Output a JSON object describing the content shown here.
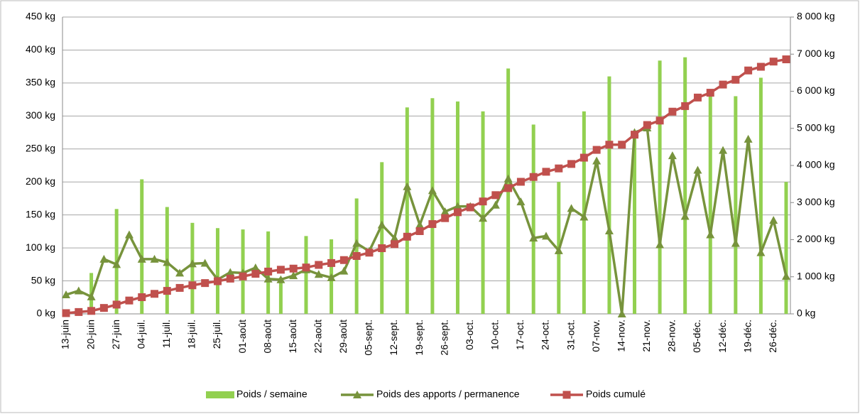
{
  "chart_data": {
    "type": "combo",
    "categories": [
      "13-juin",
      null,
      "20-juin",
      null,
      "27-juin",
      null,
      "04-juil.",
      null,
      "11-juil.",
      null,
      "18-juil.",
      null,
      "25-juil.",
      null,
      "01-août",
      null,
      "08-août",
      null,
      "15-août",
      null,
      "22-août",
      null,
      "29-août",
      null,
      "05-sept.",
      null,
      "12-sept.",
      null,
      "19-sept.",
      null,
      "26-sept.",
      null,
      "03-oct.",
      null,
      "10-oct.",
      null,
      "17-oct.",
      null,
      "24-oct.",
      null,
      "31-oct.",
      null,
      "07-nov.",
      null,
      "14-nov.",
      null,
      "21-nov.",
      null,
      "28-nov.",
      null,
      "05-déc.",
      null,
      "12-déc.",
      null,
      "19-déc.",
      null,
      "26-déc.",
      null
    ],
    "series": [
      {
        "name": "Poids / semaine",
        "kind": "bar",
        "color": "#92d050",
        "values": [
          null,
          null,
          62,
          null,
          159,
          null,
          204,
          null,
          162,
          null,
          138,
          null,
          130,
          null,
          128,
          null,
          125,
          55,
          null,
          118,
          null,
          113,
          null,
          175,
          null,
          230,
          null,
          313,
          null,
          327,
          null,
          322,
          null,
          307,
          null,
          372,
          null,
          287,
          null,
          200,
          null,
          307,
          null,
          360,
          null,
          275,
          null,
          384,
          null,
          389,
          null,
          330,
          null,
          330,
          null,
          358,
          null,
          200
        ]
      },
      {
        "name": "Poids des apports / permanence",
        "kind": "line",
        "marker": "triangle",
        "color": "#77933c",
        "values": [
          29,
          35,
          26,
          83,
          75,
          120,
          83,
          83,
          78,
          62,
          76,
          77,
          52,
          63,
          62,
          70,
          53,
          52,
          58,
          67,
          60,
          55,
          65,
          107,
          95,
          135,
          115,
          193,
          135,
          187,
          155,
          163,
          163,
          145,
          165,
          205,
          170,
          115,
          118,
          96,
          160,
          147,
          232,
          126,
          0,
          275,
          282,
          105,
          240,
          148,
          218,
          120,
          248,
          107,
          265,
          93,
          142,
          57
        ]
      },
      {
        "name": "Poids cumulé",
        "kind": "line",
        "marker": "square",
        "axis": "y2",
        "color": "#c0504d",
        "values": [
          20,
          50,
          80,
          160,
          250,
          360,
          450,
          540,
          620,
          700,
          770,
          830,
          880,
          950,
          1010,
          1080,
          1140,
          1190,
          1220,
          1250,
          1320,
          1370,
          1450,
          1560,
          1650,
          1770,
          1880,
          2080,
          2230,
          2420,
          2580,
          2740,
          2870,
          3030,
          3200,
          3390,
          3560,
          3690,
          3830,
          3920,
          4040,
          4210,
          4420,
          4560,
          4560,
          4830,
          5090,
          5210,
          5450,
          5600,
          5830,
          5960,
          6180,
          6310,
          6560,
          6660,
          6800,
          6860
        ]
      }
    ],
    "ylim": [
      0,
      450
    ],
    "yticks": [
      {
        "value": 0,
        "label": "0 kg"
      },
      {
        "value": 50,
        "label": "50 kg"
      },
      {
        "value": 100,
        "label": "100 kg"
      },
      {
        "value": 150,
        "label": "150 kg"
      },
      {
        "value": 200,
        "label": "200 kg"
      },
      {
        "value": 250,
        "label": "250 kg"
      },
      {
        "value": 300,
        "label": "300 kg"
      },
      {
        "value": 350,
        "label": "350 kg"
      },
      {
        "value": 400,
        "label": "400 kg"
      },
      {
        "value": 450,
        "label": "450 kg"
      }
    ],
    "y2lim": [
      0,
      8000
    ],
    "y2ticks": [
      {
        "value": 0,
        "label": "0 kg"
      },
      {
        "value": 1000,
        "label": "1 000 kg"
      },
      {
        "value": 2000,
        "label": "2 000 kg"
      },
      {
        "value": 3000,
        "label": "3 000 kg"
      },
      {
        "value": 4000,
        "label": "4 000 kg"
      },
      {
        "value": 5000,
        "label": "5 000 kg"
      },
      {
        "value": 6000,
        "label": "6 000 kg"
      },
      {
        "value": 7000,
        "label": "7 000 kg"
      },
      {
        "value": 8000,
        "label": "8 000 kg"
      }
    ],
    "grid": true,
    "legend": "bottom"
  }
}
